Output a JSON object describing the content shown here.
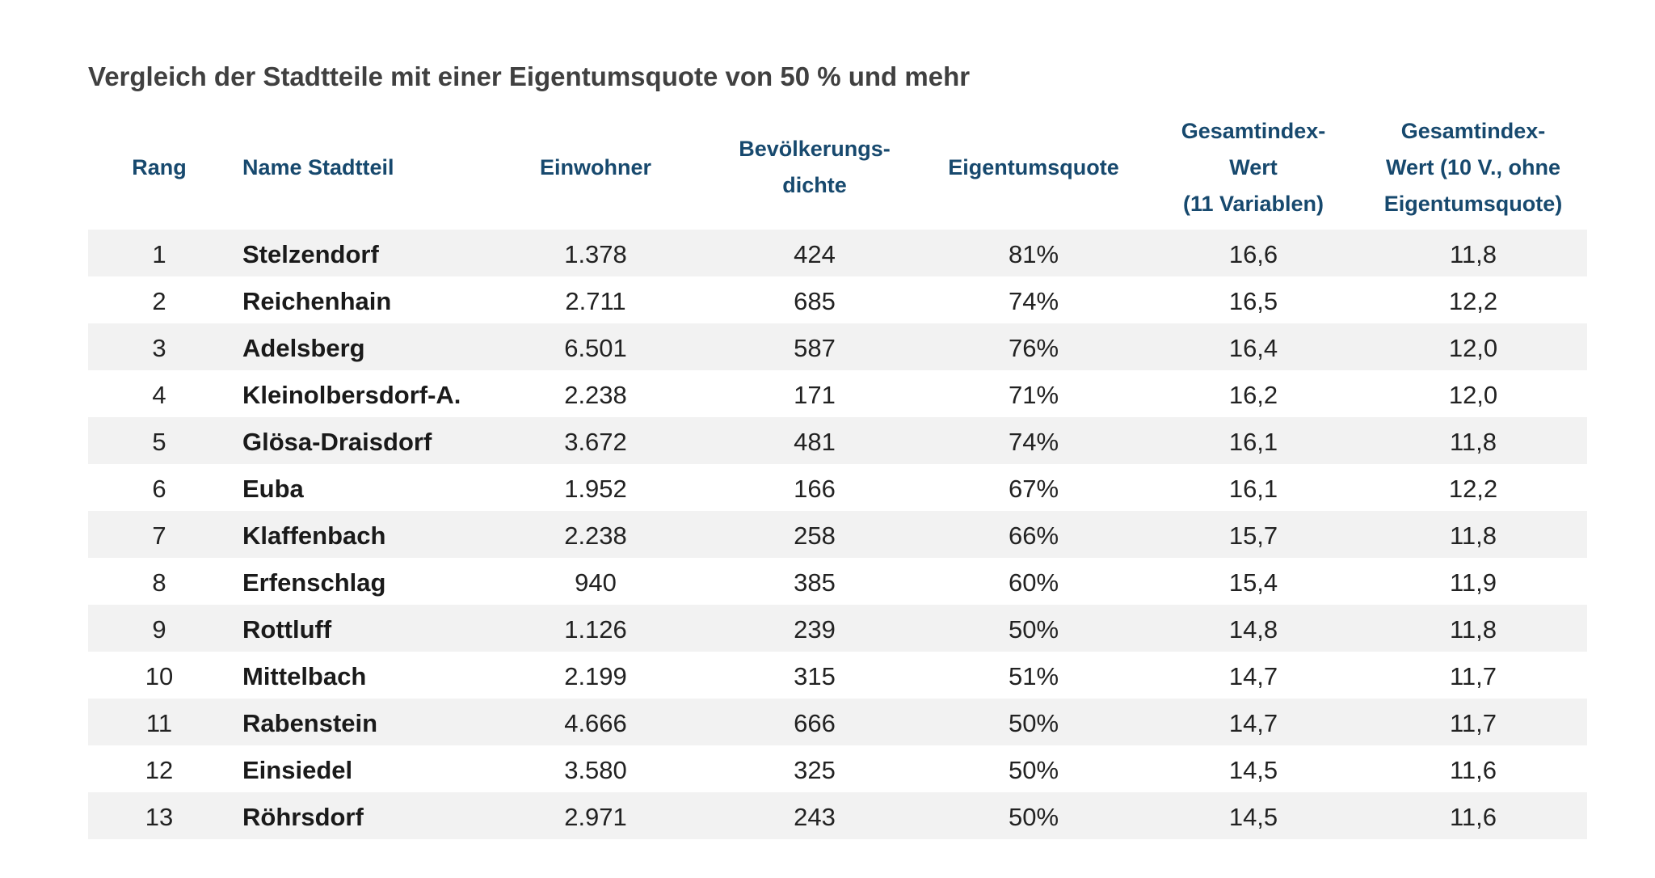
{
  "chart_data": {
    "type": "table",
    "title": "Vergleich der Stadtteile mit einer Eigentumsquote von 50 % und mehr",
    "columns": [
      {
        "key": "rang",
        "lines": [
          "Rang"
        ]
      },
      {
        "key": "name",
        "lines": [
          "Name Stadtteil"
        ]
      },
      {
        "key": "einwohner",
        "lines": [
          "Einwohner"
        ]
      },
      {
        "key": "dichte",
        "lines": [
          "Bevölkerungs-",
          "dichte"
        ]
      },
      {
        "key": "quote",
        "lines": [
          "Eigentumsquote"
        ]
      },
      {
        "key": "index11",
        "lines": [
          "Gesamtindex-",
          "Wert",
          "(11 Variablen)"
        ]
      },
      {
        "key": "index10",
        "lines": [
          "Gesamtindex-",
          "Wert (10 V., ohne",
          "Eigentumsquote)"
        ]
      }
    ],
    "rows": [
      {
        "rang": "1",
        "name": "Stelzendorf",
        "einwohner": "1.378",
        "dichte": "424",
        "quote": "81%",
        "index11": "16,6",
        "index10": "11,8"
      },
      {
        "rang": "2",
        "name": "Reichenhain",
        "einwohner": "2.711",
        "dichte": "685",
        "quote": "74%",
        "index11": "16,5",
        "index10": "12,2"
      },
      {
        "rang": "3",
        "name": "Adelsberg",
        "einwohner": "6.501",
        "dichte": "587",
        "quote": "76%",
        "index11": "16,4",
        "index10": "12,0"
      },
      {
        "rang": "4",
        "name": "Kleinolbersdorf-A.",
        "einwohner": "2.238",
        "dichte": "171",
        "quote": "71%",
        "index11": "16,2",
        "index10": "12,0"
      },
      {
        "rang": "5",
        "name": "Glösa-Draisdorf",
        "einwohner": "3.672",
        "dichte": "481",
        "quote": "74%",
        "index11": "16,1",
        "index10": "11,8"
      },
      {
        "rang": "6",
        "name": "Euba",
        "einwohner": "1.952",
        "dichte": "166",
        "quote": "67%",
        "index11": "16,1",
        "index10": "12,2"
      },
      {
        "rang": "7",
        "name": "Klaffenbach",
        "einwohner": "2.238",
        "dichte": "258",
        "quote": "66%",
        "index11": "15,7",
        "index10": "11,8"
      },
      {
        "rang": "8",
        "name": "Erfenschlag",
        "einwohner": "940",
        "dichte": "385",
        "quote": "60%",
        "index11": "15,4",
        "index10": "11,9"
      },
      {
        "rang": "9",
        "name": "Rottluff",
        "einwohner": "1.126",
        "dichte": "239",
        "quote": "50%",
        "index11": "14,8",
        "index10": "11,8"
      },
      {
        "rang": "10",
        "name": "Mittelbach",
        "einwohner": "2.199",
        "dichte": "315",
        "quote": "51%",
        "index11": "14,7",
        "index10": "11,7"
      },
      {
        "rang": "11",
        "name": "Rabenstein",
        "einwohner": "4.666",
        "dichte": "666",
        "quote": "50%",
        "index11": "14,7",
        "index10": "11,7"
      },
      {
        "rang": "12",
        "name": "Einsiedel",
        "einwohner": "3.580",
        "dichte": "325",
        "quote": "50%",
        "index11": "14,5",
        "index10": "11,6"
      },
      {
        "rang": "13",
        "name": "Röhrsdorf",
        "einwohner": "2.971",
        "dichte": "243",
        "quote": "50%",
        "index11": "14,5",
        "index10": "11,6"
      }
    ]
  }
}
